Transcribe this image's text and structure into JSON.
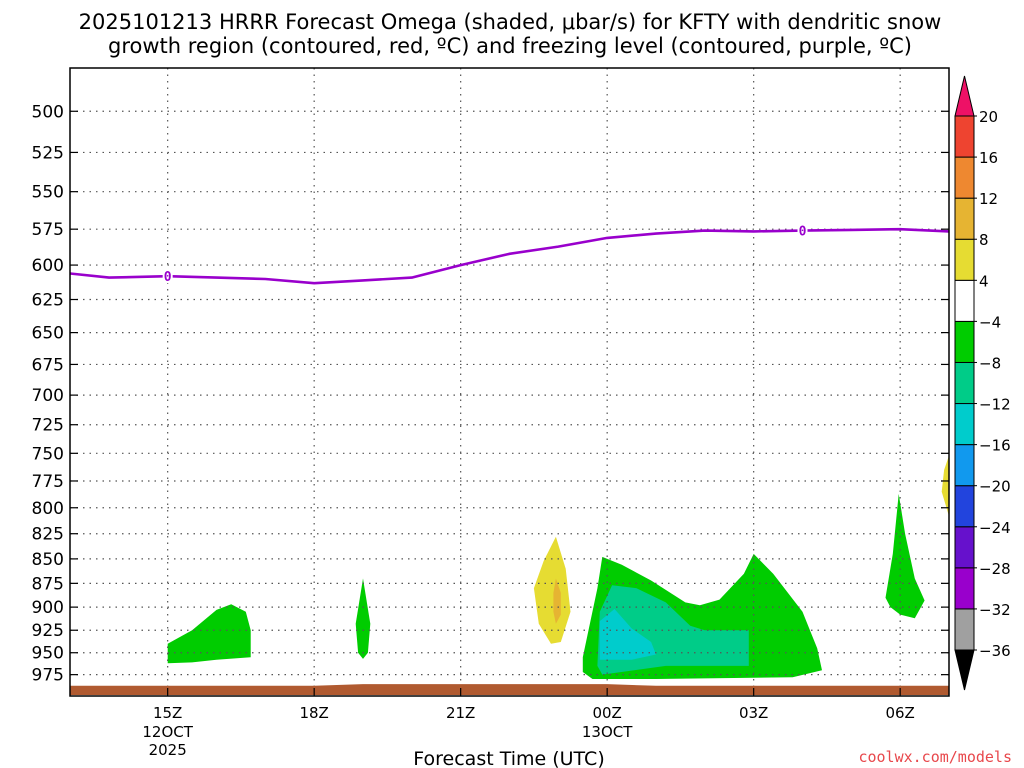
{
  "chart_data": {
    "type": "area",
    "title": "2025101213 HRRR Forecast Omega (shaded, μbar/s) for KFTY with dendritic snow",
    "subtitle": "growth region (contoured, red, ºC) and freezing level (contoured, purple, ºC)",
    "xlabel": "Forecast Time (UTC)",
    "ylabel": "",
    "credit": "coolwx.com/models",
    "y_scale": "log",
    "y_inverted": true,
    "ylim": [
      1000,
      475
    ],
    "xlim": [
      13,
      31
    ],
    "grid": true,
    "y_ticks": [
      500,
      525,
      550,
      575,
      600,
      625,
      650,
      675,
      700,
      725,
      750,
      775,
      800,
      825,
      850,
      875,
      900,
      925,
      950,
      975
    ],
    "x_ticks": [
      {
        "x": 15,
        "label": "15Z",
        "sub": "12OCT",
        "sub2": "2025"
      },
      {
        "x": 18,
        "label": "18Z",
        "sub": "",
        "sub2": ""
      },
      {
        "x": 21,
        "label": "21Z",
        "sub": "",
        "sub2": ""
      },
      {
        "x": 24,
        "label": "00Z",
        "sub": "13OCT",
        "sub2": ""
      },
      {
        "x": 27,
        "label": "03Z",
        "sub": "",
        "sub2": ""
      },
      {
        "x": 30,
        "label": "06Z",
        "sub": "",
        "sub2": ""
      }
    ],
    "freezing_level": {
      "color": "#9900cc",
      "label_value": "0",
      "label_positions": [
        [
          15,
          608
        ],
        [
          28,
          576
        ]
      ],
      "points": [
        [
          13,
          606
        ],
        [
          13.8,
          609
        ],
        [
          15,
          608
        ],
        [
          16,
          609
        ],
        [
          17,
          610
        ],
        [
          18,
          613
        ],
        [
          19,
          611
        ],
        [
          20,
          609
        ],
        [
          21,
          600
        ],
        [
          22,
          592
        ],
        [
          23,
          587
        ],
        [
          24,
          581
        ],
        [
          25,
          578
        ],
        [
          26,
          576
        ],
        [
          27,
          576.5
        ],
        [
          28,
          576
        ],
        [
          29,
          575.5
        ],
        [
          30,
          575
        ],
        [
          31,
          576.5
        ]
      ]
    },
    "ground": {
      "color": "#b05a30",
      "points": [
        [
          13,
          988
        ],
        [
          18,
          988
        ],
        [
          19,
          986
        ],
        [
          23,
          986
        ],
        [
          24,
          986
        ],
        [
          25,
          988
        ],
        [
          31,
          988
        ]
      ]
    },
    "omega_regions": [
      {
        "level": -4,
        "color": "#00cc00",
        "points": [
          [
            15,
            940
          ],
          [
            15.5,
            925
          ],
          [
            16,
            903
          ],
          [
            16.3,
            897
          ],
          [
            16.6,
            905
          ],
          [
            16.7,
            925
          ],
          [
            16.7,
            955
          ],
          [
            16,
            958
          ],
          [
            15.5,
            961
          ],
          [
            15,
            962
          ]
        ]
      },
      {
        "level": -4,
        "color": "#00cc00",
        "points": [
          [
            18.85,
            918
          ],
          [
            19,
            870
          ],
          [
            19.15,
            918
          ],
          [
            19.1,
            950
          ],
          [
            19,
            957
          ],
          [
            18.9,
            950
          ]
        ]
      },
      {
        "level": 4,
        "color": "#e6dc32",
        "points": [
          [
            22.5,
            880
          ],
          [
            22.7,
            852
          ],
          [
            22.95,
            828
          ],
          [
            23.15,
            860
          ],
          [
            23.25,
            905
          ],
          [
            23.05,
            938
          ],
          [
            22.85,
            940
          ],
          [
            22.6,
            918
          ]
        ]
      },
      {
        "level": 8,
        "color": "#e6b432",
        "points": [
          [
            22.9,
            885
          ],
          [
            22.95,
            870
          ],
          [
            23.05,
            885
          ],
          [
            23.05,
            908
          ],
          [
            22.95,
            918
          ],
          [
            22.9,
            905
          ]
        ]
      },
      {
        "level": -4,
        "color": "#00cc00",
        "points": [
          [
            23.5,
            955
          ],
          [
            23.8,
            880
          ],
          [
            23.9,
            848
          ],
          [
            24.3,
            856
          ],
          [
            24.9,
            872
          ],
          [
            25.6,
            895
          ],
          [
            25.9,
            898
          ],
          [
            26.3,
            892
          ],
          [
            26.8,
            865
          ],
          [
            27,
            845
          ],
          [
            27.4,
            865
          ],
          [
            28,
            905
          ],
          [
            28.3,
            945
          ],
          [
            28.4,
            970
          ],
          [
            27.8,
            978
          ],
          [
            25,
            980
          ],
          [
            23.7,
            980
          ],
          [
            23.5,
            972
          ]
        ]
      },
      {
        "level": -8,
        "color": "#00cc88",
        "points": [
          [
            23.8,
            965
          ],
          [
            23.85,
            905
          ],
          [
            24.1,
            877
          ],
          [
            24.6,
            880
          ],
          [
            25.2,
            895
          ],
          [
            25.7,
            920
          ],
          [
            26,
            925
          ],
          [
            26.9,
            925
          ],
          [
            26.9,
            965
          ],
          [
            25.2,
            965
          ],
          [
            23.9,
            975
          ]
        ]
      },
      {
        "level": -12,
        "color": "#00cccc",
        "points": [
          [
            23.85,
            958
          ],
          [
            23.85,
            915
          ],
          [
            24.15,
            902
          ],
          [
            24.5,
            923
          ],
          [
            24.9,
            938
          ],
          [
            25,
            952
          ],
          [
            24.5,
            958
          ]
        ]
      },
      {
        "level": -4,
        "color": "#00cc00",
        "points": [
          [
            29.7,
            890
          ],
          [
            29.85,
            845
          ],
          [
            29.97,
            787
          ],
          [
            30.1,
            825
          ],
          [
            30.3,
            870
          ],
          [
            30.5,
            893
          ],
          [
            30.3,
            912
          ],
          [
            30,
            908
          ],
          [
            29.8,
            900
          ]
        ]
      },
      {
        "level": 4,
        "color": "#e6dc32",
        "points": [
          [
            31,
            752
          ],
          [
            30.9,
            765
          ],
          [
            30.85,
            785
          ],
          [
            31,
            808
          ]
        ]
      }
    ],
    "colorbar": {
      "levels": [
        -36,
        -32,
        -28,
        -24,
        -20,
        -16,
        -12,
        -8,
        -4,
        4,
        8,
        12,
        16,
        20
      ],
      "colors": [
        "#000000",
        "#a0a0a0",
        "#9900cc",
        "#6611cc",
        "#2244dd",
        "#1199ee",
        "#00cccc",
        "#00cc88",
        "#00cc00",
        "#ffffff",
        "#e6dc32",
        "#e6b432",
        "#ee8830",
        "#ee4430",
        "#ee1166"
      ]
    }
  }
}
